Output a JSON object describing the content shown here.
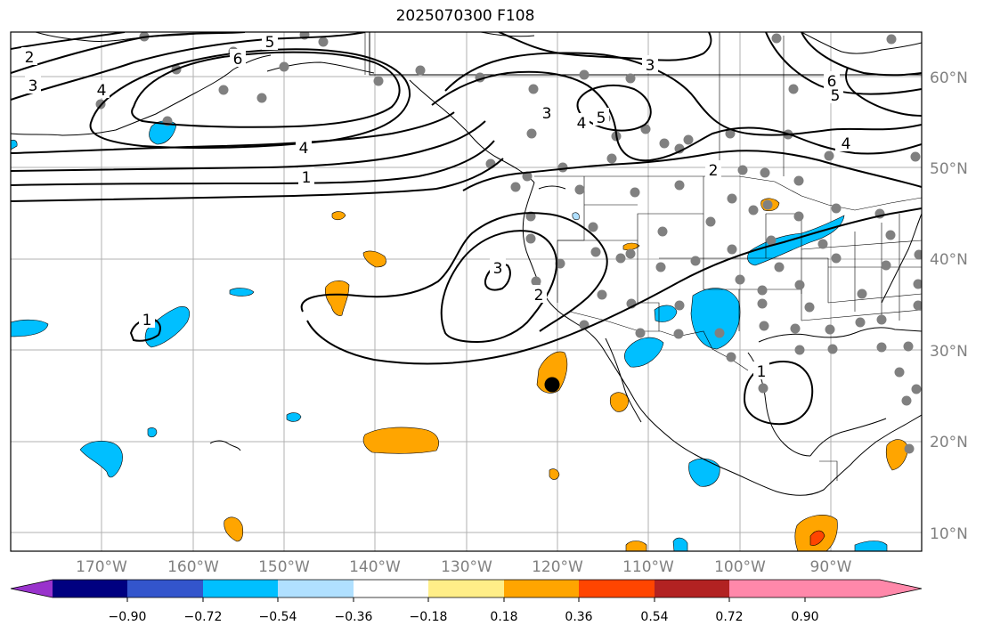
{
  "title": "2025070300 F108",
  "lat_labels": [
    "60°N",
    "50°N",
    "40°N",
    "30°N",
    "20°N",
    "10°N"
  ],
  "lon_labels": [
    "170°W",
    "160°W",
    "150°W",
    "140°W",
    "130°W",
    "120°W",
    "110°W",
    "100°W",
    "90°W"
  ],
  "colorbar": {
    "colors": [
      "#9933cc",
      "#000080",
      "#3355cc",
      "#00bfff",
      "#b0e0ff",
      "#ffffff",
      "#ffee88",
      "#ffa500",
      "#ff4500",
      "#b22222",
      "#ff88aa"
    ],
    "tick_labels": [
      "−0.90",
      "−0.72",
      "−0.54",
      "−0.36",
      "−0.18",
      "0.18",
      "0.36",
      "0.54",
      "0.72",
      "0.90"
    ]
  },
  "contour_labels": [
    "2",
    "3",
    "4",
    "5",
    "6",
    "5",
    "6",
    "1",
    "4",
    "3",
    "4",
    "5",
    "3",
    "2",
    "6",
    "5",
    "4",
    "1",
    "3",
    "2",
    "1"
  ],
  "colors": {
    "negative_fill": "#00bfff",
    "positive_fill": "#ffa500",
    "strong_positive_fill": "#ff4500",
    "station_dot": "#808080",
    "grid": "#b0b0b0",
    "contour": "#000000"
  }
}
